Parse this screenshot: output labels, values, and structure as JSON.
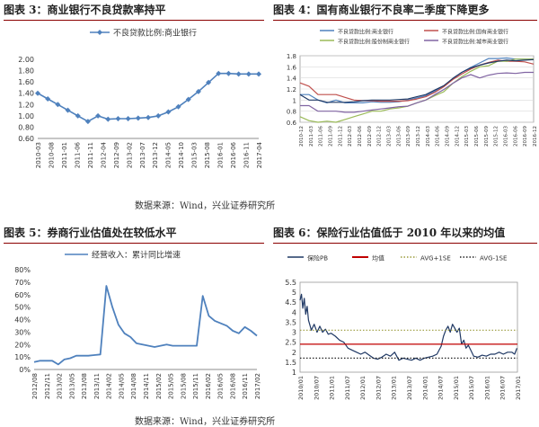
{
  "figures": [
    {
      "caption": "图表 3：商业银行不良贷款率持平"
    },
    {
      "caption": "图表 4：国有商业银行不良率二季度下降更多"
    },
    {
      "caption": "图表 5：券商行业估值处在较低水平"
    },
    {
      "caption": "图表 6：保险行业估值低于 2010 年以来的均值"
    }
  ],
  "source_top": "数据来源：Wind，兴业证券研究所",
  "source_bottom": "数据来源：Wind，兴业证券研究所",
  "colors": {
    "rule": "#8b0000",
    "blue": "#4f81bd",
    "red": "#c0504d",
    "navy": "#1f3864",
    "green": "#9bbb59",
    "purple": "#8064a2"
  },
  "chart_data": [
    {
      "type": "line",
      "title": "",
      "legend_position": "top",
      "grid": false,
      "categories": [
        "2010-03",
        "2010-07",
        "2010-11",
        "2011-03",
        "2011-07",
        "2011-11",
        "2012-03",
        "2012-07",
        "2012-11",
        "2013-03",
        "2013-07",
        "2013-11",
        "2014-03",
        "2014-07",
        "2014-11",
        "2015-03",
        "2015-07",
        "2015-11",
        "2016-03",
        "2016-07",
        "2016-11",
        "2017-03",
        "2017-07"
      ],
      "tick_labels": [
        "2010-03",
        "2010-08",
        "2011-01",
        "2011-06",
        "2011-11",
        "2012-04",
        "2012-09",
        "2013-02",
        "2013-07",
        "2013-12",
        "2014-05",
        "2014-10",
        "2015-03",
        "2015-08",
        "2016-01",
        "2016-06",
        "2016-11",
        "2017-04"
      ],
      "series": [
        {
          "name": "不良贷款比例:商业银行",
          "color": "#4f81bd",
          "values": [
            1.4,
            1.3,
            1.2,
            1.1,
            1.0,
            0.9,
            1.0,
            0.94,
            0.95,
            0.95,
            0.96,
            0.97,
            1.0,
            1.07,
            1.16,
            1.29,
            1.43,
            1.59,
            1.75,
            1.75,
            1.74,
            1.74,
            1.74
          ]
        }
      ],
      "ylim": [
        0.6,
        2.0
      ],
      "yticks": [
        "0.60",
        "0.80",
        "1.00",
        "1.20",
        "1.40",
        "1.60",
        "1.80",
        "2.00"
      ]
    },
    {
      "type": "line",
      "title": "",
      "legend_position": "top",
      "grid": true,
      "categories": [
        "2010-12",
        "2011-03",
        "2011-06",
        "2011-09",
        "2011-12",
        "2012-03",
        "2012-06",
        "2012-09",
        "2012-12",
        "2013-03",
        "2013-06",
        "2013-09",
        "2013-12",
        "2014-03",
        "2014-06",
        "2014-09",
        "2014-12",
        "2015-03",
        "2015-06",
        "2015-09",
        "2015-12",
        "2016-03",
        "2016-06",
        "2016-09",
        "2016-12",
        "2017-03",
        "2017-06"
      ],
      "tick_labels": [
        "2010-12",
        "2011-03",
        "2011-06",
        "2011-09",
        "2011-12",
        "2012-03",
        "2012-06",
        "2012-09",
        "2012-12",
        "2013-03",
        "2013-06",
        "2013-09",
        "2013-12",
        "2014-03",
        "2014-06",
        "2014-09",
        "2014-12",
        "2015-03",
        "2015-06",
        "2015-09",
        "2015-12",
        "2016-03",
        "2016-06",
        "2016-09",
        "2016-12"
      ],
      "series": [
        {
          "name": "不良贷款比例:商业银行",
          "color": "#4f81bd",
          "values": [
            1.1,
            1.1,
            1.0,
            0.95,
            1.0,
            0.95,
            0.95,
            0.95,
            0.97,
            0.96,
            0.96,
            0.97,
            1.0,
            1.04,
            1.08,
            1.16,
            1.25,
            1.39,
            1.5,
            1.59,
            1.67,
            1.75,
            1.75,
            1.76,
            1.74,
            1.74,
            1.74
          ]
        },
        {
          "name": "不良贷款比例:国有商业银行",
          "color": "#c0504d",
          "values": [
            1.31,
            1.25,
            1.1,
            1.1,
            1.1,
            1.05,
            1.0,
            0.99,
            0.99,
            0.98,
            0.98,
            0.98,
            0.99,
            1.02,
            1.06,
            1.14,
            1.24,
            1.37,
            1.47,
            1.56,
            1.63,
            1.68,
            1.72,
            1.7,
            1.7,
            1.69,
            1.65
          ]
        },
        {
          "name": "不良贷款比例:股份制商业银行",
          "color": "#9bbb59",
          "values": [
            0.7,
            0.63,
            0.6,
            0.62,
            0.6,
            0.65,
            0.7,
            0.75,
            0.8,
            0.8,
            0.84,
            0.86,
            0.89,
            0.95,
            1.0,
            1.08,
            1.15,
            1.3,
            1.42,
            1.52,
            1.6,
            1.62,
            1.7,
            1.7,
            1.74,
            1.74,
            1.74
          ]
        },
        {
          "name": "不良贷款比例:城市商业银行",
          "color": "#8064a2",
          "values": [
            0.9,
            0.9,
            0.8,
            0.8,
            0.8,
            0.78,
            0.78,
            0.8,
            0.82,
            0.84,
            0.86,
            0.88,
            0.89,
            0.95,
            1.0,
            1.1,
            1.19,
            1.3,
            1.4,
            1.46,
            1.4,
            1.45,
            1.48,
            1.49,
            1.48,
            1.5,
            1.5
          ]
        },
        {
          "name": "",
          "color": "#1f3864",
          "values": [
            1.1,
            1.0,
            1.0,
            0.96,
            0.96,
            0.96,
            0.97,
            0.99,
            1.0,
            1.0,
            1.0,
            1.01,
            1.02,
            1.06,
            1.1,
            1.18,
            1.26,
            1.39,
            1.5,
            1.58,
            1.63,
            1.67,
            1.7,
            1.72,
            1.71,
            1.72,
            1.73
          ]
        }
      ],
      "ylim": [
        0.6,
        1.8
      ],
      "yticks": [
        "0.6",
        "0.8",
        "1",
        "1.2",
        "1.4",
        "1.6",
        "1.8"
      ]
    },
    {
      "type": "line",
      "title": "",
      "legend_position": "top",
      "grid": false,
      "categories": [
        "2012/08",
        "2012/09",
        "2012/11",
        "2013/01",
        "2013/02",
        "2013/04",
        "2013/05",
        "2013/07",
        "2013/08",
        "2013/10",
        "2013/11",
        "2013/12",
        "2014/01",
        "2014/02",
        "2014/03",
        "2014/04",
        "2014/05",
        "2014/07",
        "2014/08",
        "2014/10",
        "2014/12",
        "2015/02",
        "2015/04",
        "2015/06",
        "2015/08",
        "2015/10",
        "2015/11",
        "2015/12",
        "2016/01",
        "2016/03",
        "2016/05",
        "2016/07",
        "2016/09",
        "2016/11",
        "2016/12",
        "2017/02",
        "2017/03",
        "2017/04"
      ],
      "tick_labels": [
        "2012/08",
        "2012/11",
        "2013/02",
        "2013/05",
        "2013/08",
        "2013/11",
        "2014/02",
        "2014/05",
        "2014/08",
        "2014/11",
        "2015/02",
        "2015/05",
        "2015/08",
        "2015/11",
        "2016/02",
        "2016/05",
        "2016/08",
        "2016/11",
        "2017/02"
      ],
      "series": [
        {
          "name": "经营收入：累计同比增速",
          "color": "#4f81bd",
          "values": [
            0.06,
            0.07,
            0.07,
            0.07,
            0.04,
            0.08,
            0.09,
            0.11,
            0.11,
            0.11,
            0.115,
            0.12,
            0.67,
            0.5,
            0.36,
            0.29,
            0.26,
            0.21,
            0.2,
            0.19,
            0.18,
            0.19,
            0.2,
            0.19,
            0.19,
            0.19,
            0.19,
            0.19,
            0.59,
            0.43,
            0.39,
            0.37,
            0.35,
            0.31,
            0.29,
            0.34,
            0.31,
            0.27
          ]
        }
      ],
      "ylim": [
        0,
        0.8
      ],
      "yticks": [
        "0%",
        "10%",
        "20%",
        "30%",
        "40%",
        "50%",
        "60%",
        "70%",
        "80%"
      ]
    },
    {
      "type": "line",
      "title": "",
      "legend_position": "top",
      "grid": false,
      "tick_labels": [
        "2010/01",
        "2010/07",
        "2011/01",
        "2011/07",
        "2012/01",
        "2012/07",
        "2013/01",
        "2013/07",
        "2014/01",
        "2014/07",
        "2015/01",
        "2015/07",
        "2016/01",
        "2016/07",
        "2017/01"
      ],
      "x_range": [
        2010.0,
        2017.7
      ],
      "series": [
        {
          "name": "保险PB",
          "color": "#1f3864",
          "x": [
            2010.0,
            2010.05,
            2010.1,
            2010.15,
            2010.2,
            2010.25,
            2010.3,
            2010.4,
            2010.5,
            2010.6,
            2010.7,
            2010.8,
            2010.9,
            2011.0,
            2011.1,
            2011.25,
            2011.4,
            2011.55,
            2011.7,
            2011.85,
            2012.0,
            2012.15,
            2012.3,
            2012.45,
            2012.6,
            2012.75,
            2012.9,
            2013.05,
            2013.2,
            2013.35,
            2013.5,
            2013.65,
            2013.8,
            2013.95,
            2014.1,
            2014.25,
            2014.4,
            2014.55,
            2014.7,
            2014.85,
            2015.0,
            2015.08,
            2015.16,
            2015.24,
            2015.32,
            2015.4,
            2015.48,
            2015.56,
            2015.64,
            2015.72,
            2015.8,
            2015.88,
            2015.96,
            2016.05,
            2016.15,
            2016.3,
            2016.45,
            2016.6,
            2016.75,
            2016.9,
            2017.05,
            2017.2,
            2017.35,
            2017.5,
            2017.6,
            2017.68
          ],
          "y": [
            4.6,
            4.9,
            4.2,
            4.7,
            3.9,
            4.3,
            3.6,
            3.1,
            3.4,
            3.0,
            3.3,
            3.0,
            3.15,
            2.9,
            2.95,
            2.8,
            2.6,
            2.5,
            2.2,
            2.1,
            2.0,
            1.9,
            2.0,
            1.85,
            1.7,
            1.65,
            1.75,
            1.9,
            1.8,
            2.0,
            1.6,
            1.7,
            1.65,
            1.6,
            1.7,
            1.6,
            1.7,
            1.75,
            1.8,
            1.9,
            2.3,
            2.8,
            3.1,
            3.3,
            3.0,
            3.4,
            3.2,
            3.0,
            3.2,
            2.4,
            2.6,
            2.2,
            2.35,
            2.1,
            1.8,
            1.75,
            1.85,
            1.8,
            1.9,
            1.9,
            2.0,
            1.9,
            2.0,
            2.0,
            1.9,
            2.2
          ]
        },
        {
          "name": "均值",
          "color": "#c00000",
          "values": [
            2.4,
            2.4
          ]
        },
        {
          "name": "AVG+1SE",
          "color": "#9b9b3c",
          "dash": "dotted",
          "values": [
            3.1,
            3.1
          ]
        },
        {
          "name": "AVG-1SE",
          "color": "#222222",
          "dash": "dotted",
          "values": [
            1.7,
            1.7
          ]
        }
      ],
      "ylim": [
        1.0,
        5.5
      ],
      "yticks": [
        "1",
        "1.5",
        "2",
        "2.5",
        "3",
        "3.5",
        "4",
        "4.5",
        "5",
        "5.5"
      ]
    }
  ]
}
